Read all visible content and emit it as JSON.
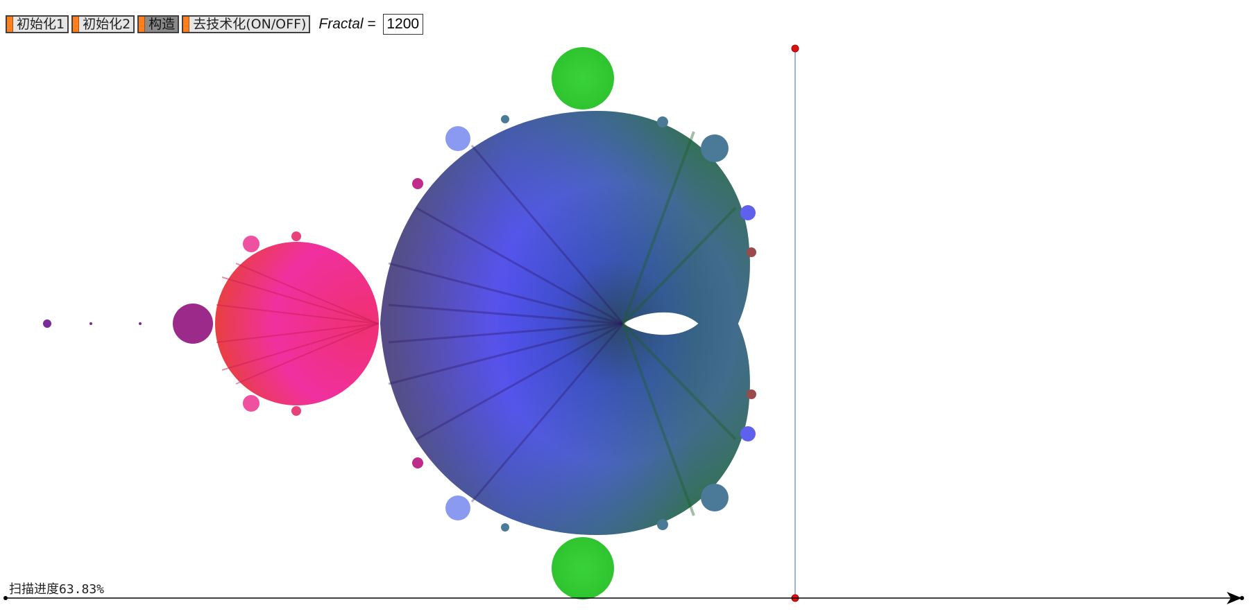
{
  "toolbar": {
    "init1_label": "初始化1",
    "init2_label": "初始化2",
    "construct_label": "构造",
    "detech_label": "去技术化(ON/OFF)",
    "fractal_name": "Fractal",
    "fractal_eq": " =",
    "fractal_value": "1200"
  },
  "status": {
    "progress_text": "扫描进度63.83%",
    "progress_fraction": 0.6383
  },
  "colors": {
    "button_accent": "#ff7f1e",
    "axis": "#000000",
    "scan_line": "#9fb0e0",
    "point": "#e01010"
  }
}
